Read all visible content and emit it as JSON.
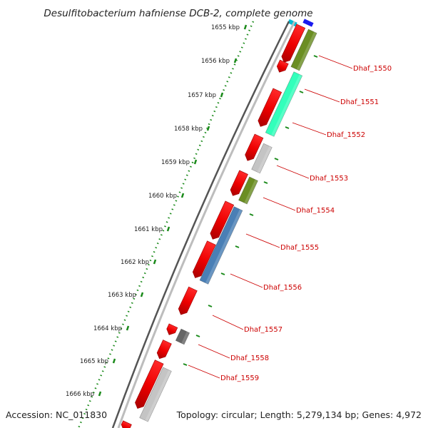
{
  "title": "Desulfitobacterium hafniense DCB-2, complete genome",
  "accession_text": "Accession: NC_011830",
  "topology_text": "Topology: circular; Length: 5,279,134 bp; Genes: 4,972",
  "ticks": [
    "1655 kbp",
    "1656 kbp",
    "1657 kbp",
    "1658 kbp",
    "1659 kbp",
    "1660 kbp",
    "1661 kbp",
    "1662 kbp",
    "1663 kbp",
    "1664 kbp",
    "1665 kbp",
    "1666 kbp"
  ],
  "gene_labels": [
    "Dhaf_1550",
    "Dhaf_1551",
    "Dhaf_1552",
    "Dhaf_1553",
    "Dhaf_1554",
    "Dhaf_1555",
    "Dhaf_1556",
    "Dhaf_1557",
    "Dhaf_1558",
    "Dhaf_1559"
  ],
  "colors": {
    "forward_cds": "#ee0000",
    "olive_cds": "#6b8e23",
    "mint_cds": "#33ffbb",
    "gray_cds": "#c4c4c4",
    "steelblue_cds": "#4a7fb5",
    "darkgray_cds": "#666666",
    "backbone": "#8a8a8a",
    "tick_dots": "#1a8a1a",
    "label_color": "#cc0000"
  }
}
